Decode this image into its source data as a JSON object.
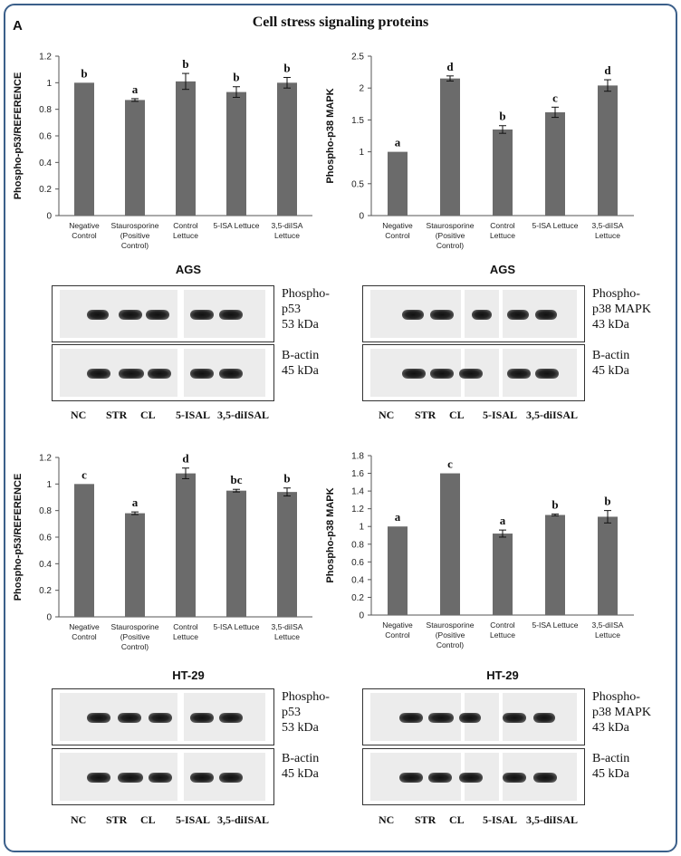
{
  "panel_letter": "A",
  "title": "Cell stress signaling proteins",
  "categories": [
    "Negative Control",
    "Staurosporine (Positive Control)",
    "Control Lettuce",
    "5-ISA Lettuce",
    "3,5-diISA Lettuce"
  ],
  "category_lines": [
    [
      "Negative",
      "Control"
    ],
    [
      "Staurosporine",
      "(Positive",
      "Control)"
    ],
    [
      "Control",
      "Lettuce"
    ],
    [
      "5-ISA Lettuce"
    ],
    [
      "3,5-diISA",
      "Lettuce"
    ]
  ],
  "cell_lines": {
    "top": "AGS",
    "bottom": "HT-29"
  },
  "lanes": [
    "NC",
    "STR",
    "CL",
    "5-ISAL",
    "3,5-diISAL"
  ],
  "blot_labels": {
    "p53": [
      "Phospho-",
      "p53",
      "53 kDa"
    ],
    "p38": [
      "Phospho-",
      "p38 MAPK",
      "43 kDa"
    ],
    "actin": [
      "B-actin",
      "45 kDa"
    ]
  },
  "chart_data": [
    {
      "id": "ags_p53",
      "type": "bar",
      "title": "",
      "ylabel": "Phospho-p53/REFERENCE",
      "ylim": [
        0,
        1.2
      ],
      "yticks": [
        "0",
        "0.2",
        "0.4",
        "0.6",
        "0.8",
        "1",
        "1.2"
      ],
      "values": [
        1.0,
        0.87,
        1.01,
        0.93,
        1.0
      ],
      "errors": [
        0.0,
        0.01,
        0.06,
        0.04,
        0.04
      ],
      "letters": [
        "b",
        "a",
        "b",
        "b",
        "b"
      ]
    },
    {
      "id": "ags_p38",
      "type": "bar",
      "title": "",
      "ylabel": "Phospho-p38 MAPK",
      "ylim": [
        0,
        2.5
      ],
      "yticks": [
        "0",
        "0.5",
        "1",
        "1.5",
        "2",
        "2.5"
      ],
      "values": [
        1.0,
        2.15,
        1.35,
        1.62,
        2.04
      ],
      "errors": [
        0.0,
        0.04,
        0.06,
        0.08,
        0.09
      ],
      "letters": [
        "a",
        "d",
        "b",
        "c",
        "d"
      ]
    },
    {
      "id": "ht29_p53",
      "type": "bar",
      "title": "",
      "ylabel": "Phospho-p53/REFERENCE",
      "ylim": [
        0,
        1.2
      ],
      "yticks": [
        "0",
        "0.2",
        "0.4",
        "0.6",
        "0.8",
        "1",
        "1.2"
      ],
      "values": [
        1.0,
        0.78,
        1.08,
        0.95,
        0.94
      ],
      "errors": [
        0.0,
        0.01,
        0.04,
        0.01,
        0.03
      ],
      "letters": [
        "c",
        "a",
        "d",
        "bc",
        "b"
      ]
    },
    {
      "id": "ht29_p38",
      "type": "bar",
      "title": "",
      "ylabel": "Phospho-p38 MAPK",
      "ylim": [
        0,
        1.8
      ],
      "yticks": [
        "0",
        "0.2",
        "0.4",
        "0.6",
        "0.8",
        "1",
        "1.2",
        "1.4",
        "1.6",
        "1.8"
      ],
      "values": [
        1.0,
        1.6,
        0.92,
        1.13,
        1.11
      ],
      "errors": [
        0.0,
        0.0,
        0.04,
        0.01,
        0.07
      ],
      "letters": [
        "a",
        "c",
        "a",
        "b",
        "b"
      ]
    }
  ]
}
